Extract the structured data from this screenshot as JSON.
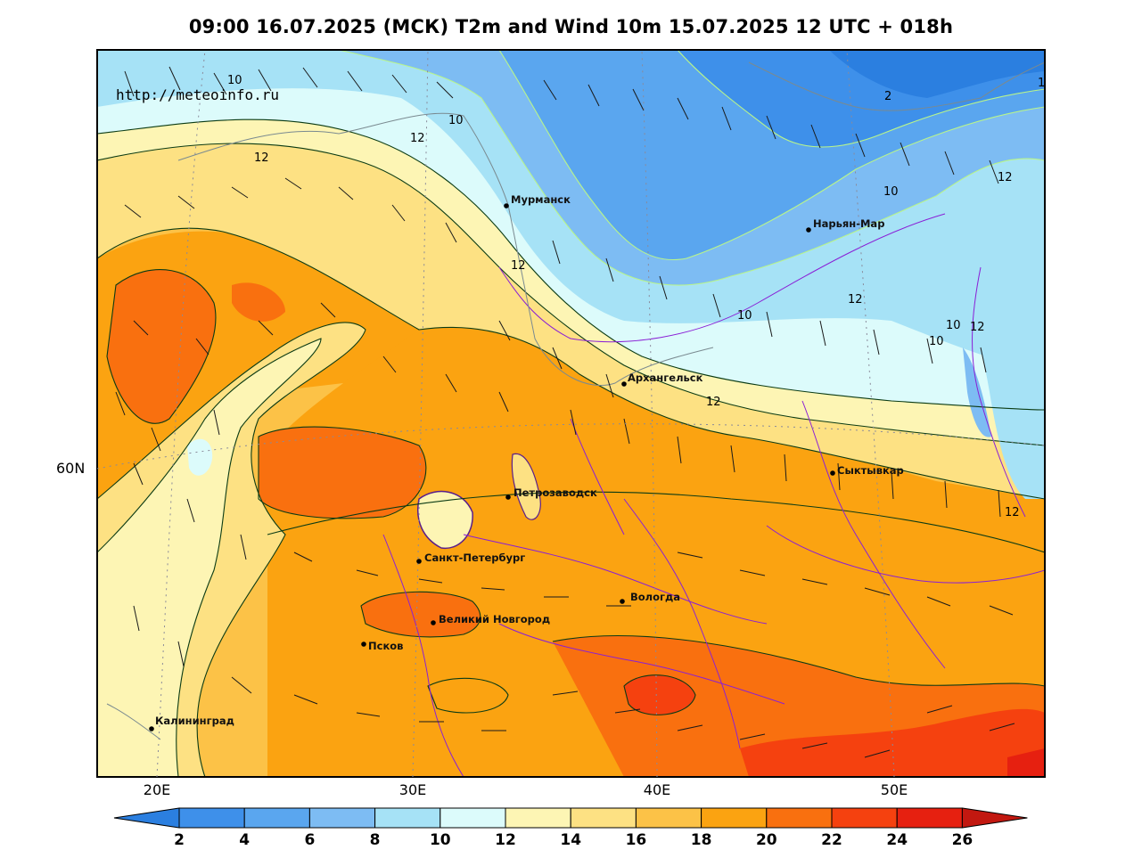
{
  "title": "09:00 16.07.2025 (МСК) T2m and Wind 10m 15.07.2025 12 UTC + 018h",
  "source": "http://meteoinfo.ru",
  "lon_labels": [
    "20E",
    "30E",
    "40E",
    "50E"
  ],
  "lat_labels": [
    "60N"
  ],
  "cities": [
    {
      "name": "Мурманск"
    },
    {
      "name": "Нарьян-Мар"
    },
    {
      "name": "Архангельск"
    },
    {
      "name": "Сыктывкар"
    },
    {
      "name": "Петрозаводск"
    },
    {
      "name": "Санкт-Петербург"
    },
    {
      "name": "Вологда"
    },
    {
      "name": "Великий Новгород"
    },
    {
      "name": "Псков"
    },
    {
      "name": "Калининград"
    }
  ],
  "contour_labels": [
    "10",
    "10",
    "12",
    "12",
    "2",
    "10",
    "12",
    "12",
    "10",
    "12",
    "12",
    "10",
    "12",
    "10",
    "12",
    "12",
    "1"
  ],
  "colorbar": {
    "ticks": [
      "2",
      "4",
      "6",
      "8",
      "10",
      "12",
      "14",
      "16",
      "18",
      "20",
      "22",
      "24",
      "26"
    ],
    "colors": [
      "#2b7fe0",
      "#3e90ea",
      "#5aa6ef",
      "#7dbcf3",
      "#a6e2f6",
      "#dcfbfb",
      "#fdf5b4",
      "#fde183",
      "#fcc247",
      "#fba311",
      "#f9700f",
      "#f5410f",
      "#e62010",
      "#c21810"
    ]
  },
  "legend_colors": {
    "country_border": "#8a1fd6",
    "contour_line": "#0b3b14",
    "cold_isoline": "#b9f58a",
    "coastline": "#7a8a90"
  }
}
